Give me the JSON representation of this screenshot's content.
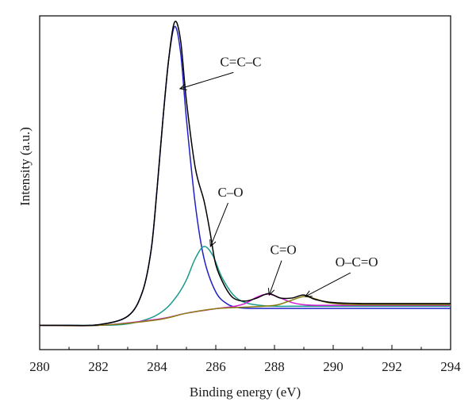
{
  "chart_data": {
    "type": "line",
    "xlabel": "Binding energy (eV)",
    "ylabel": "Intensity (a.u.)",
    "xlim": [
      280,
      294
    ],
    "ylim": [
      -0.08,
      1.02
    ],
    "x_ticks": [
      280,
      282,
      284,
      286,
      288,
      290,
      292,
      294
    ],
    "x_tick_labels": [
      "280",
      "282",
      "284",
      "286",
      "288",
      "290",
      "292",
      "294"
    ],
    "x_minor_step": 1,
    "legend": "none",
    "grid": false,
    "series": [
      {
        "color": "#000000",
        "x": [
          280,
          281,
          282,
          283,
          283.5,
          283.8,
          284,
          284.2,
          284.4,
          284.6,
          284.8,
          285,
          285.3,
          285.6,
          285.8,
          286,
          286.3,
          286.6,
          287,
          287.4,
          287.8,
          288.2,
          288.6,
          289,
          289.4,
          290,
          291,
          292,
          293,
          294
        ],
        "y": [
          0,
          0,
          0.002,
          0.03,
          0.11,
          0.25,
          0.45,
          0.68,
          0.88,
          1.0,
          0.94,
          0.74,
          0.52,
          0.41,
          0.31,
          0.2,
          0.13,
          0.09,
          0.08,
          0.09,
          0.105,
          0.09,
          0.09,
          0.1,
          0.085,
          0.075,
          0.072,
          0.072,
          0.072,
          0.072
        ]
      },
      {
        "color": "#1f1fc8",
        "x": [
          280,
          281,
          282,
          283,
          283.5,
          283.8,
          284,
          284.2,
          284.4,
          284.6,
          284.8,
          285,
          285.3,
          285.6,
          286,
          286.4,
          286.8,
          287.2,
          288,
          289,
          290,
          292,
          294
        ],
        "y": [
          0,
          0,
          0.002,
          0.03,
          0.11,
          0.25,
          0.45,
          0.68,
          0.88,
          0.985,
          0.9,
          0.68,
          0.4,
          0.22,
          0.11,
          0.07,
          0.058,
          0.056,
          0.056,
          0.056,
          0.056,
          0.056,
          0.056
        ]
      },
      {
        "color": "#1a9a8a",
        "x": [
          280,
          282,
          283,
          283.8,
          284.3,
          284.7,
          285,
          285.3,
          285.6,
          285.9,
          286.2,
          286.6,
          287,
          287.5,
          288,
          289,
          290,
          292,
          294
        ],
        "y": [
          0,
          0,
          0.005,
          0.025,
          0.055,
          0.1,
          0.15,
          0.22,
          0.26,
          0.23,
          0.16,
          0.1,
          0.075,
          0.066,
          0.063,
          0.063,
          0.063,
          0.063,
          0.063
        ]
      },
      {
        "color": "#d21ed2",
        "x": [
          280,
          282,
          284,
          285,
          286,
          286.6,
          287,
          287.4,
          287.8,
          288.2,
          288.6,
          289,
          289.5,
          290,
          291,
          292,
          294
        ],
        "y": [
          0,
          0,
          0.02,
          0.04,
          0.055,
          0.062,
          0.072,
          0.093,
          0.103,
          0.09,
          0.075,
          0.068,
          0.066,
          0.066,
          0.066,
          0.066,
          0.066
        ]
      },
      {
        "color": "#8a7d10",
        "x": [
          280,
          282,
          284,
          285,
          286,
          287,
          288,
          288.5,
          289,
          289.4,
          289.8,
          290.3,
          291,
          292,
          294
        ],
        "y": [
          0,
          0,
          0.018,
          0.04,
          0.055,
          0.06,
          0.066,
          0.08,
          0.095,
          0.087,
          0.075,
          0.07,
          0.068,
          0.068,
          0.068
        ]
      }
    ],
    "annotations": [
      {
        "text": "C=C–C",
        "x": 286.85,
        "y": 0.87,
        "arrow_to": [
          284.78,
          0.78
        ]
      },
      {
        "text": "C–O",
        "x": 286.5,
        "y": 0.44,
        "arrow_to": [
          285.82,
          0.26
        ]
      },
      {
        "text": "C=O",
        "x": 288.3,
        "y": 0.25,
        "arrow_to": [
          287.82,
          0.1
        ]
      },
      {
        "text": "O–C=O",
        "x": 290.8,
        "y": 0.21,
        "arrow_to": [
          289.05,
          0.095
        ]
      }
    ]
  }
}
